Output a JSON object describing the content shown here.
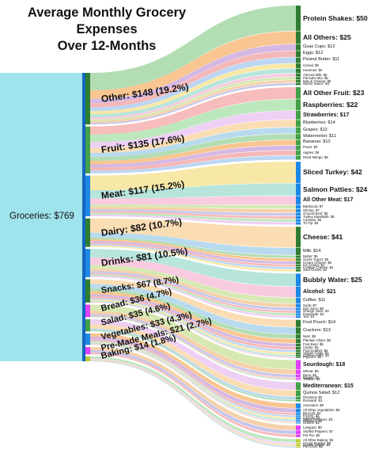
{
  "title_line1": "Average Monthly Grocery Expenses",
  "title_line2": "Over 12-Months",
  "chart_data": {
    "type": "sankey",
    "source": {
      "label": "Groceries: $769",
      "value": 769
    },
    "categories": [
      {
        "label": "Other: $148 (19.2%)",
        "value": 148,
        "color": "#2e7d32",
        "items": [
          {
            "label": "Protein Shakes: $50",
            "value": 50
          },
          {
            "label": "All Others: $25",
            "value": 25
          },
          {
            "label": "Guac Cups: $12",
            "value": 12
          },
          {
            "label": "Eggs: $12",
            "value": 12
          },
          {
            "label": "Peanut Butter: $11",
            "value": 11
          },
          {
            "label": "Cereal: $9",
            "value": 9
          },
          {
            "label": "Hummus: $9",
            "value": 9
          },
          {
            "label": "Almond Milk: $6",
            "value": 6
          },
          {
            "label": "Pancake Mix: $5",
            "value": 5
          },
          {
            "label": "Mac & Cheese: $5",
            "value": 5
          },
          {
            "label": "Nacho Sauce: $4",
            "value": 4
          }
        ]
      },
      {
        "label": "Fruit: $135 (17.6%)",
        "value": 135,
        "color": "#43a047",
        "items": [
          {
            "label": "All Other Fruit: $23",
            "value": 23
          },
          {
            "label": "Raspberries: $22",
            "value": 22
          },
          {
            "label": "Strawberries: $17",
            "value": 17
          },
          {
            "label": "Blueberries: $14",
            "value": 14
          },
          {
            "label": "Grapes: $12",
            "value": 12
          },
          {
            "label": "Watermelon: $11",
            "value": 11
          },
          {
            "label": "Bananas: $10",
            "value": 10
          },
          {
            "label": "Pears: $9",
            "value": 9
          },
          {
            "label": "Apples: $9",
            "value": 9
          },
          {
            "label": "Dried Mango: $8",
            "value": 8
          }
        ]
      },
      {
        "label": "Meat: $117 (15.2%)",
        "value": 117,
        "color": "#1e88e5",
        "items": [
          {
            "label": "Sliced Turkey: $42",
            "value": 42
          },
          {
            "label": "Salmon Patties: $24",
            "value": 24
          },
          {
            "label": "All Other Meat: $17",
            "value": 17
          },
          {
            "label": "Barbacoa: $7",
            "value": 7
          },
          {
            "label": "Shrimp: $7",
            "value": 7
          },
          {
            "label": "Ground Beef: $5",
            "value": 5
          },
          {
            "label": "Turkey Meatballs: $5",
            "value": 5
          },
          {
            "label": "Carnitas: $5",
            "value": 5
          },
          {
            "label": "Tri-Tip: $5",
            "value": 5
          }
        ]
      },
      {
        "label": "Dairy: $82 (10.7%)",
        "value": 82,
        "color": "#2e7d32",
        "items": [
          {
            "label": "Cheese: $41",
            "value": 41
          },
          {
            "label": "Milk: $14",
            "value": 14
          },
          {
            "label": "Butter: $5",
            "value": 5
          },
          {
            "label": "Greek Yogurt: $5",
            "value": 5
          },
          {
            "label": "Cream Cheese: $5",
            "value": 5
          },
          {
            "label": "Ice Cream: $4",
            "value": 4
          },
          {
            "label": "Cottage Cheese: $4",
            "value": 4
          },
          {
            "label": "Sour Cream: $4",
            "value": 4
          }
        ]
      },
      {
        "label": "Drinks: $81 (10.5%)",
        "value": 81,
        "color": "#1e88e5",
        "items": [
          {
            "label": "Bubbly Water: $25",
            "value": 25
          },
          {
            "label": "Alcohol: $21",
            "value": 21
          },
          {
            "label": "Coffee: $11",
            "value": 11
          },
          {
            "label": "Soda: $7",
            "value": 7
          },
          {
            "label": "Diet Juice: $5",
            "value": 5
          },
          {
            "label": "Orange Juice: $4",
            "value": 4
          },
          {
            "label": "Powerade: $4",
            "value": 4
          },
          {
            "label": "Tea: $4",
            "value": 4
          }
        ]
      },
      {
        "label": "Snacks: $67 (8.7%)",
        "value": 67,
        "color": "#2e7d32",
        "items": [
          {
            "label": "Fruit Pouch: $14",
            "value": 14
          },
          {
            "label": "Crackers: $13",
            "value": 13
          },
          {
            "label": "Nuts: $8",
            "value": 8
          },
          {
            "label": "Plantain Chips: $8",
            "value": 8
          },
          {
            "label": "Fruit Bars: $6",
            "value": 6
          },
          {
            "label": "Candy: $5",
            "value": 5
          },
          {
            "label": "Fruit Leather: $4",
            "value": 4
          },
          {
            "label": "Veggie Chips: $4",
            "value": 4
          },
          {
            "label": "Cheese Puffs: $3",
            "value": 3
          },
          {
            "label": "Popcorn: $2",
            "value": 2
          }
        ]
      },
      {
        "label": "Bread: $36 (4.7%)",
        "value": 36,
        "color": "#e040fb",
        "items": [
          {
            "label": "Sourdough: $18",
            "value": 18
          },
          {
            "label": "Wheat: $9",
            "value": 9
          },
          {
            "label": "Buns: $5",
            "value": 5
          },
          {
            "label": "Bagels: $2",
            "value": 2
          },
          {
            "label": "Tortillas: $2",
            "value": 2
          }
        ]
      },
      {
        "label": "Salad: $35 (4.6%)",
        "value": 35,
        "color": "#43a047",
        "items": [
          {
            "label": "Mediterranean: $15",
            "value": 15
          },
          {
            "label": "Quinoa Salad: $12",
            "value": 12
          },
          {
            "label": "Dressing: $5",
            "value": 5
          },
          {
            "label": "Romaine: $3",
            "value": 3
          }
        ]
      },
      {
        "label": "Vegetables: $33 (4.3%)",
        "value": 33,
        "color": "#1e88e5",
        "items": [
          {
            "label": "Avocados: $9",
            "value": 9
          },
          {
            "label": "All Other Vegetables: $8",
            "value": 8
          },
          {
            "label": "Broccoli: $4",
            "value": 4
          },
          {
            "label": "Frozen: $3",
            "value": 3
          },
          {
            "label": "Carrots: $3",
            "value": 3
          },
          {
            "label": "Sweet Potatoes: $3",
            "value": 3
          },
          {
            "label": "Potatoes: $2",
            "value": 2
          },
          {
            "label": "Onions: $1",
            "value": 1
          }
        ]
      },
      {
        "label": "Pre-Made Meals: $21 (2.7%)",
        "value": 21,
        "color": "#e040fb",
        "items": [
          {
            "label": "Lasagna: $9",
            "value": 9
          },
          {
            "label": "Stuffed Peppers: $7",
            "value": 7
          },
          {
            "label": "Pot Pie: $5",
            "value": 5
          }
        ]
      },
      {
        "label": "Baking: $14 (1.8%)",
        "value": 14,
        "color": "#c0ca33",
        "items": [
          {
            "label": "All Other Baking: $6",
            "value": 6
          },
          {
            "label": "Cocoa Powder: $3",
            "value": 3
          },
          {
            "label": "Cookie Dough: $3",
            "value": 3
          },
          {
            "label": "Pie Crust: $2",
            "value": 2
          }
        ]
      }
    ]
  }
}
